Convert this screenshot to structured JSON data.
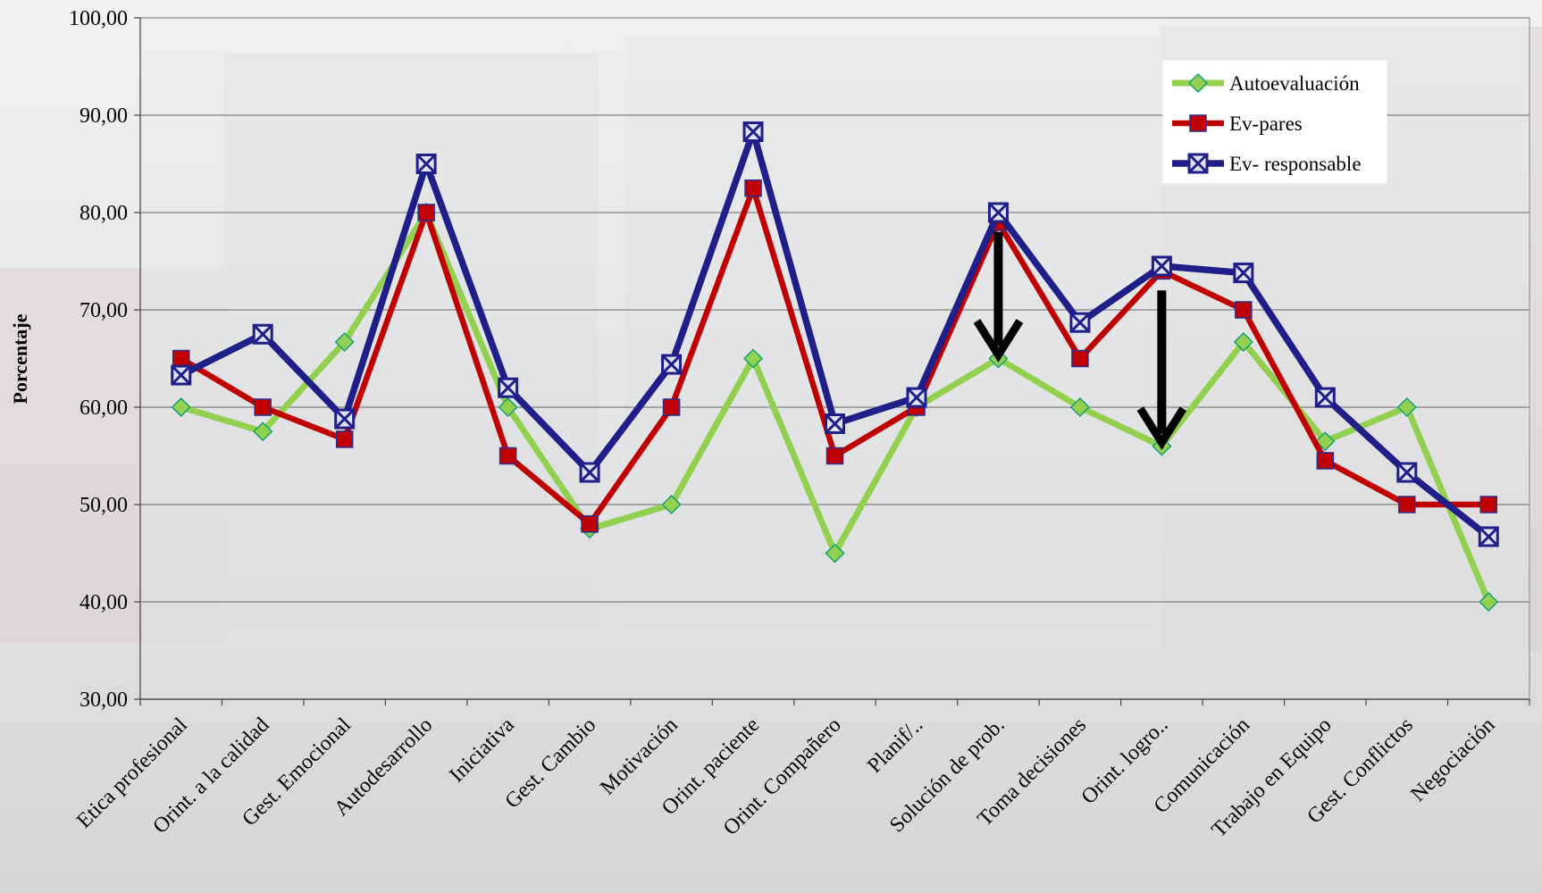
{
  "chart_data": {
    "type": "line",
    "title": "",
    "xlabel": "",
    "ylabel": "Porcentaje",
    "ylim": [
      30,
      100
    ],
    "yticks": [
      "30,00",
      "40,00",
      "50,00",
      "60,00",
      "70,00",
      "80,00",
      "90,00",
      "100,00"
    ],
    "grid": true,
    "legend_position": "top-right",
    "categories": [
      "Etica profesional",
      "Orint. a la calidad",
      "Gest. Emocional",
      "Autodesarrollo",
      "Iniciativa",
      "Gest. Cambio",
      "Motivación",
      "Orint. paciente",
      "Orint. Compañero",
      "Planif/..",
      "Solución de prob.",
      "Toma decisiones",
      "Orint. logro..",
      "Comunicación",
      "Trabajo en Equipo",
      "Gest. Conflictos",
      "Negociación"
    ],
    "series": [
      {
        "name": "Autoevaluación",
        "color": "#92d050",
        "marker": "diamond",
        "values": [
          60.0,
          57.5,
          66.7,
          80.0,
          60.0,
          47.5,
          50.0,
          65.0,
          45.0,
          60.0,
          65.0,
          60.0,
          56.0,
          66.7,
          56.5,
          60.0,
          40.0
        ]
      },
      {
        "name": "Ev-pares",
        "color": "#c00000",
        "marker": "square",
        "values": [
          65.0,
          60.0,
          56.7,
          80.0,
          55.0,
          48.0,
          60.0,
          82.5,
          55.0,
          60.0,
          79.0,
          65.0,
          74.0,
          70.0,
          54.5,
          50.0,
          50.0
        ]
      },
      {
        "name": "Ev- responsable",
        "color": "#1f1f8a",
        "marker": "x-square",
        "values": [
          63.3,
          67.5,
          58.8,
          85.0,
          62.0,
          53.3,
          64.4,
          88.3,
          58.3,
          61.0,
          80.0,
          68.7,
          74.5,
          73.8,
          61.0,
          53.3,
          46.7
        ]
      }
    ],
    "annotations": [
      {
        "type": "down-arrow",
        "category": "Solución de prob.",
        "from": 78,
        "to": 65
      },
      {
        "type": "down-arrow",
        "category": "Orint. logro..",
        "from": 72,
        "to": 56
      }
    ]
  }
}
